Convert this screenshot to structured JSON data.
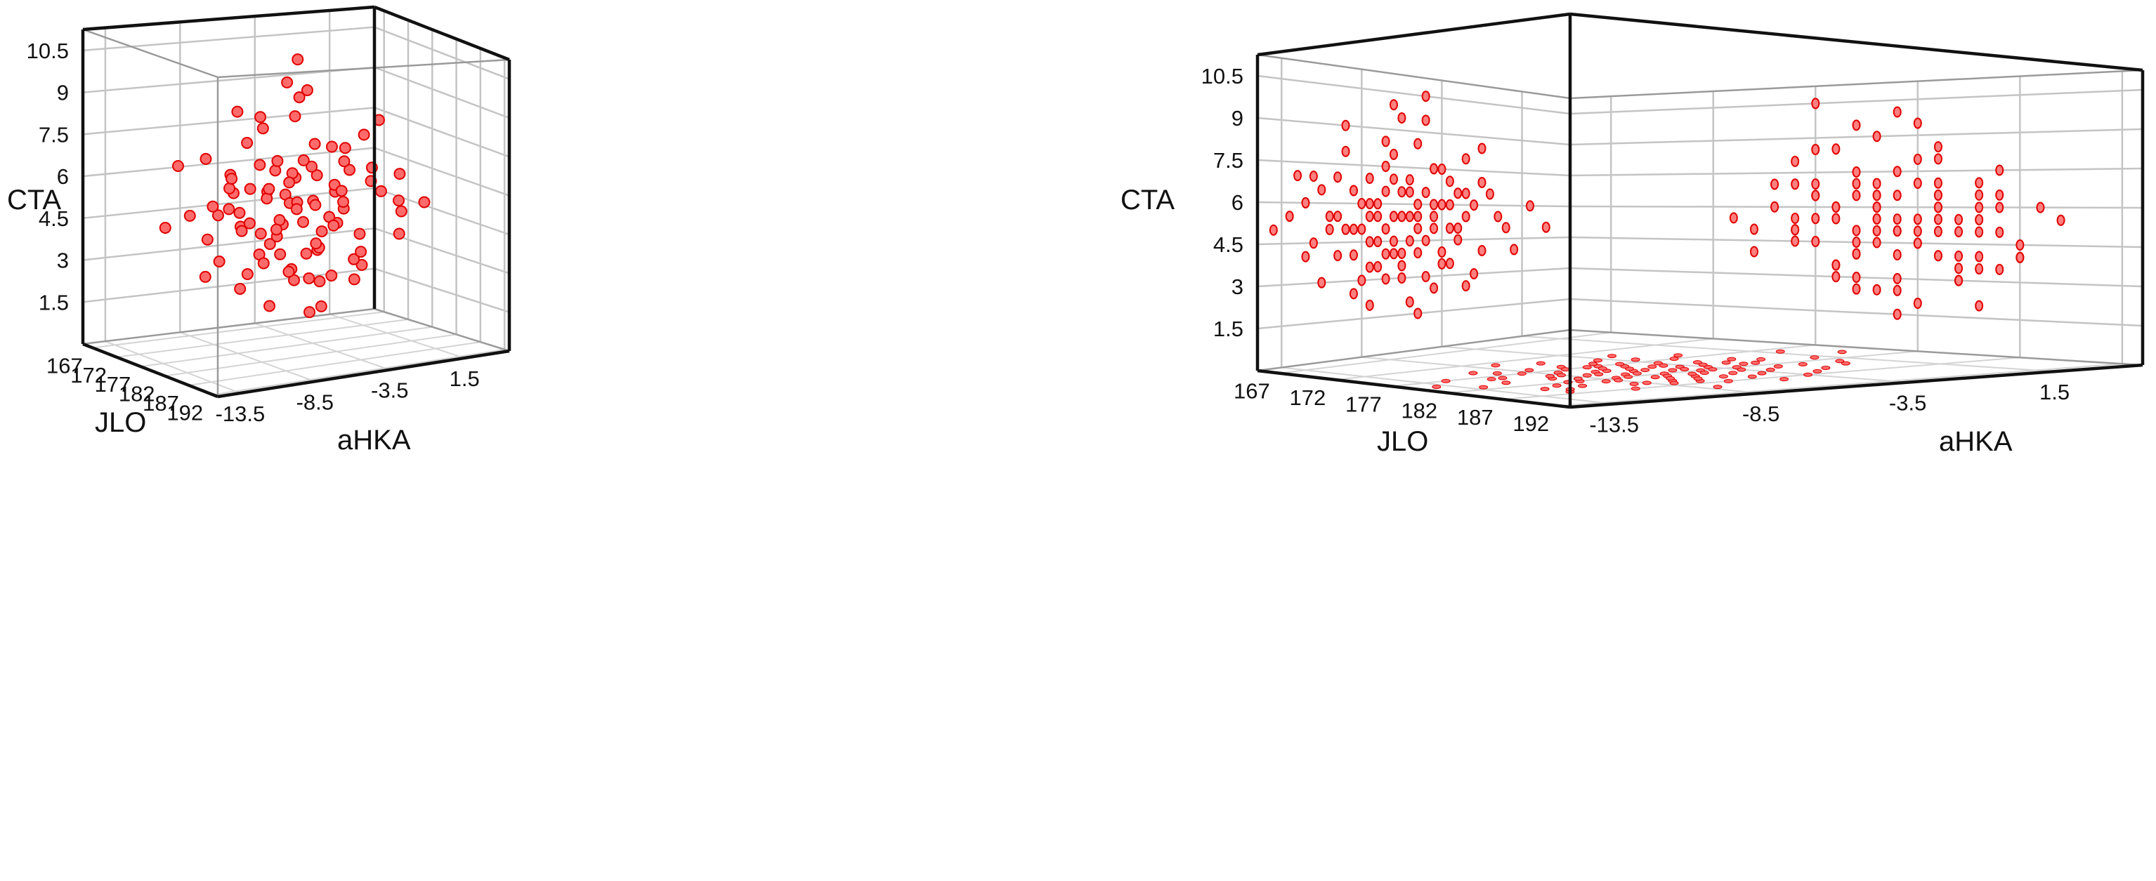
{
  "chart_data": {
    "type": "scatter",
    "subtype": "3d-scatter",
    "marker_color": "#ff4040",
    "marker_edge_color": "#e00000",
    "grid": true,
    "axes": {
      "x": {
        "label": "aHKA",
        "range": [
          -15,
          4.5
        ],
        "ticks": [
          "-13.5",
          "-8.5",
          "-3.5",
          "1.5"
        ],
        "tick_values": [
          -13.5,
          -8.5,
          -3.5,
          1.5
        ]
      },
      "y": {
        "label": "JLO",
        "range": [
          165,
          193
        ],
        "ticks": [
          "167",
          "172",
          "177",
          "182",
          "187",
          "192"
        ],
        "tick_values": [
          167,
          172,
          177,
          182,
          187,
          192
        ]
      },
      "z": {
        "label": "CTA",
        "range": [
          0,
          11.25
        ],
        "ticks": [
          "1.5",
          "3",
          "4.5",
          "6",
          "7.5",
          "9",
          "10.5"
        ],
        "tick_values": [
          1.5,
          3,
          4.5,
          6,
          7.5,
          9,
          10.5
        ]
      }
    },
    "panels": [
      {
        "view": "3d points"
      },
      {
        "view": "projections onto walls and floor"
      }
    ],
    "points_columns": [
      "aHKA",
      "JLO",
      "CTA"
    ],
    "points": [
      [
        -6,
        180,
        5.5
      ],
      [
        -8,
        178,
        6
      ],
      [
        -4.5,
        182,
        4.5
      ],
      [
        -10,
        175,
        7
      ],
      [
        -3,
        184,
        3.5
      ],
      [
        -7,
        181,
        5
      ],
      [
        -5.5,
        179,
        6.5
      ],
      [
        -9,
        183,
        4
      ],
      [
        -2,
        177,
        5.5
      ],
      [
        -12,
        186,
        6
      ],
      [
        -6.5,
        176,
        8
      ],
      [
        -4,
        180,
        2.5
      ],
      [
        -8.5,
        185,
        5
      ],
      [
        -1,
        179,
        4
      ],
      [
        -11,
        178,
        3
      ],
      [
        -5,
        188,
        6
      ],
      [
        -7.5,
        173,
        5.5
      ],
      [
        -3.5,
        181,
        7.5
      ],
      [
        -9.5,
        180,
        9
      ],
      [
        0.5,
        183,
        5
      ],
      [
        -6,
        184,
        3
      ],
      [
        -13,
        181,
        5.5
      ],
      [
        -4,
        175,
        6
      ],
      [
        -7,
        179,
        4
      ],
      [
        -2.5,
        186,
        6.5
      ],
      [
        -8,
        182,
        2
      ],
      [
        -5,
        178,
        8.5
      ],
      [
        -10.5,
        184,
        5
      ],
      [
        -1.5,
        181,
        3
      ],
      [
        -6.5,
        187,
        4.5
      ],
      [
        -3,
        176,
        5
      ],
      [
        -9,
        177,
        6.5
      ],
      [
        -5.5,
        183,
        7
      ],
      [
        -7.5,
        185,
        3.5
      ],
      [
        -4.5,
        179,
        9.5
      ],
      [
        -11.5,
        180,
        4.5
      ],
      [
        2,
        178,
        6
      ],
      [
        -6,
        174,
        4
      ],
      [
        -8,
        189,
        5.5
      ],
      [
        -2,
        183,
        8
      ],
      [
        -5,
        181,
        1.5
      ],
      [
        -9.5,
        176,
        5
      ],
      [
        -3.5,
        187,
        4
      ],
      [
        -7,
        183,
        6.5
      ],
      [
        -12.5,
        177,
        7
      ],
      [
        -0.5,
        180,
        6.5
      ],
      [
        -6.5,
        181,
        10
      ],
      [
        -4,
        185,
        5.5
      ],
      [
        -8.5,
        179,
        3
      ],
      [
        -1,
        176,
        7
      ],
      [
        -10,
        182,
        5.5
      ],
      [
        -5.5,
        177,
        4.5
      ],
      [
        -3,
        180,
        6
      ],
      [
        -7,
        186,
        7.5
      ],
      [
        -9,
        179,
        2.5
      ],
      [
        -2.5,
        174,
        5
      ],
      [
        -6,
        182,
        9.5
      ],
      [
        -4.5,
        184,
        3
      ],
      [
        -11,
        183,
        6.5
      ],
      [
        1,
        181,
        4
      ],
      [
        -7.5,
        180,
        6
      ],
      [
        -5,
        186,
        5
      ],
      [
        -8,
        176,
        4.5
      ],
      [
        -3.5,
        178,
        3.5
      ],
      [
        -6.5,
        179,
        7
      ],
      [
        -10,
        187,
        4
      ],
      [
        -1.5,
        185,
        6
      ],
      [
        -9.5,
        182,
        8
      ],
      [
        -4,
        182,
        5
      ],
      [
        -5.5,
        180,
        5.5
      ],
      [
        -14,
        179,
        5
      ],
      [
        -7,
        177,
        8.5
      ],
      [
        -2,
        181,
        2.5
      ],
      [
        -8.5,
        183,
        6
      ],
      [
        -6,
        178,
        3.5
      ],
      [
        -4.5,
        177,
        10.5
      ],
      [
        -12,
        184,
        4
      ],
      [
        -3,
        182,
        7
      ],
      [
        0,
        184,
        5.5
      ],
      [
        -5,
        183,
        4
      ],
      [
        -7.5,
        182,
        4.5
      ],
      [
        -9,
        185,
        6.5
      ],
      [
        -6.5,
        183,
        5.5
      ],
      [
        -4,
        179,
        7.5
      ],
      [
        -10.5,
        178,
        5.5
      ],
      [
        -2.5,
        179,
        4.5
      ],
      [
        -8,
        180,
        7
      ],
      [
        -5.5,
        185,
        2
      ],
      [
        -3.5,
        183,
        6
      ],
      [
        -6,
        177,
        6.5
      ],
      [
        3,
        180,
        5
      ],
      [
        -11.5,
        185,
        7
      ],
      [
        -7,
        184,
        3
      ],
      [
        -4.5,
        181,
        6.5
      ],
      [
        -9,
        181,
        5
      ],
      [
        -1,
        183,
        8.5
      ],
      [
        -6.5,
        185,
        4
      ],
      [
        -5,
        176,
        5.5
      ],
      [
        -8,
        186,
        3.5
      ],
      [
        -2,
        180,
        6.5
      ]
    ]
  }
}
